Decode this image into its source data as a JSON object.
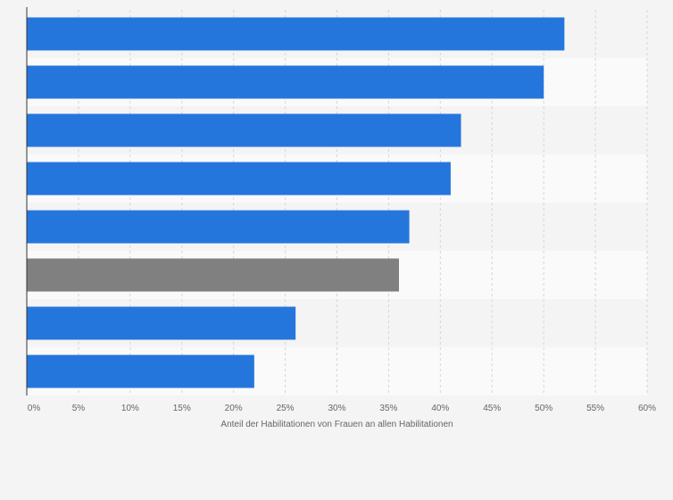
{
  "chart_data": {
    "type": "bar",
    "orientation": "horizontal",
    "categories": [
      "",
      "",
      "",
      "",
      "",
      "",
      "",
      ""
    ],
    "values": [
      52,
      50,
      42,
      41,
      37,
      36,
      26,
      22
    ],
    "highlight_index": 5,
    "xlabel": "Anteil der Habilitationen von Frauen an allen Habilitationen",
    "ylabel": "",
    "title": "",
    "xlim": [
      0,
      60
    ],
    "ticks": [
      0,
      5,
      10,
      15,
      20,
      25,
      30,
      35,
      40,
      45,
      50,
      55,
      60
    ],
    "tick_labels": [
      "0%",
      "5%",
      "10%",
      "15%",
      "20%",
      "25%",
      "30%",
      "35%",
      "40%",
      "45%",
      "50%",
      "55%",
      "60%"
    ],
    "grid": true,
    "legend": "none"
  },
  "colors": {
    "bar": "#2576dc",
    "bar_highlight": "#808080",
    "background": "#f4f4f4",
    "band_alt": "#fafafa",
    "grid": "#d6d6d6",
    "axis": "#333333",
    "text": "#666666"
  }
}
